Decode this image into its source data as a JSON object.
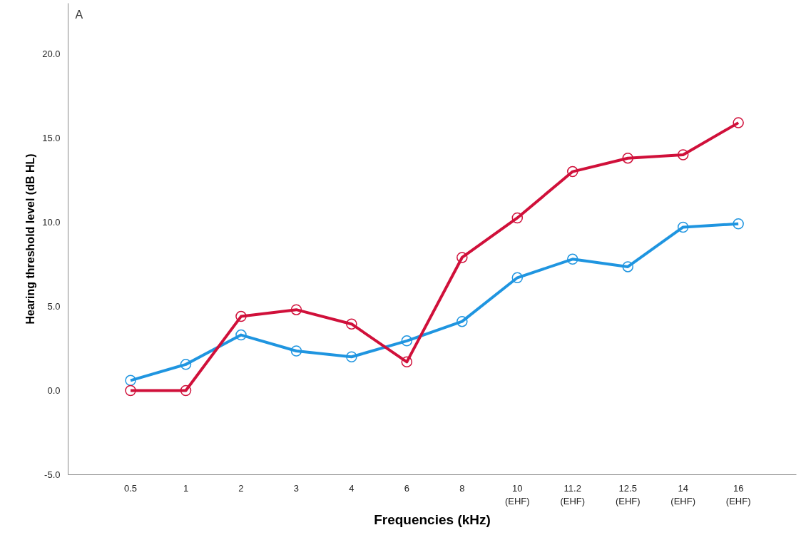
{
  "chart_data": {
    "type": "line",
    "xlabel": "Frequencies (kHz)",
    "ylabel": "Hearing threshold level (dB HL)",
    "categories": [
      "0.5",
      "1",
      "2",
      "3",
      "4",
      "6",
      "8",
      "10\n(EHF)",
      "11.2\n(EHF)",
      "12.5\n(EHF)",
      "14\n(EHF)",
      "16\n(EHF)"
    ],
    "series": [
      {
        "color": "#1f95e0",
        "values": [
          0.6,
          1.55,
          3.3,
          2.35,
          2.0,
          2.95,
          4.1,
          6.7,
          7.8,
          7.35,
          9.7,
          9.9
        ]
      },
      {
        "color": "#d0103a",
        "values": [
          0.0,
          0.0,
          4.4,
          4.8,
          3.95,
          1.7,
          7.9,
          10.25,
          13.0,
          13.8,
          14.0,
          15.9
        ]
      }
    ],
    "ylim": [
      -5,
      23
    ],
    "yticks": [
      {
        "value": -5,
        "label": "-5.0"
      },
      {
        "value": 0,
        "label": "0.0"
      },
      {
        "value": 5,
        "label": "5.0"
      },
      {
        "value": 10,
        "label": "10.0"
      },
      {
        "value": 15,
        "label": "15.0"
      },
      {
        "value": 20,
        "label": "20.0"
      }
    ],
    "annotations": [
      "A"
    ],
    "grid": false,
    "marker": "circle",
    "line_style": "solid"
  }
}
